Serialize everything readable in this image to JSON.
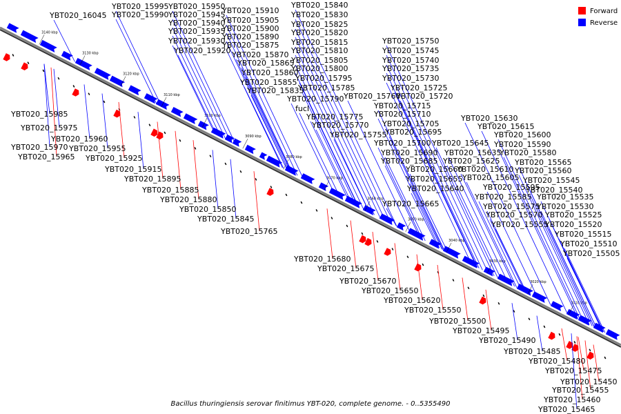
{
  "caption": "Bacillus thuringiensis serovar finitimus YBT-020, complete genome. - 0..5355490",
  "legend": [
    {
      "label": "Forward",
      "color": "#ff0000"
    },
    {
      "label": "Reverse",
      "color": "#0000ff"
    }
  ],
  "colors": {
    "forward": "#ff0000",
    "reverse": "#0000ff",
    "axis": "#808080"
  },
  "ticks": [
    "3140 kbp",
    "3130 kbp",
    "3120 kbp",
    "3110 kbp",
    "3100 kbp",
    "3090 kbp",
    "3080 kbp",
    "3070 kbp",
    "3060 kbp",
    "3050 kbp",
    "3040 kbp",
    "3030 kbp",
    "3020 kbp",
    "3010 kbp"
  ],
  "labels": [
    {
      "text": "YBT020_16045",
      "s": "r"
    },
    {
      "text": "YBT020_15995",
      "s": "r"
    },
    {
      "text": "YBT020_15990",
      "s": "r"
    },
    {
      "text": "YBT020_15950",
      "s": "r"
    },
    {
      "text": "YBT020_15945",
      "s": "r"
    },
    {
      "text": "YBT020_15940",
      "s": "r"
    },
    {
      "text": "YBT020_15935",
      "s": "r"
    },
    {
      "text": "YBT020_15930",
      "s": "r"
    },
    {
      "text": "YBT020_15920",
      "s": "r"
    },
    {
      "text": "YBT020_15910",
      "s": "r"
    },
    {
      "text": "YBT020_15905",
      "s": "r"
    },
    {
      "text": "YBT020_15900",
      "s": "r"
    },
    {
      "text": "YBT020_15890",
      "s": "r"
    },
    {
      "text": "YBT020_15875",
      "s": "r"
    },
    {
      "text": "YBT020_15870",
      "s": "r"
    },
    {
      "text": "YBT020_15865",
      "s": "r"
    },
    {
      "text": "YBT020_15860",
      "s": "r"
    },
    {
      "text": "YBT020_15855",
      "s": "r"
    },
    {
      "text": "YBT020_15835",
      "s": "r"
    },
    {
      "text": "YBT020_15840",
      "s": "r"
    },
    {
      "text": "YBT020_15830",
      "s": "r"
    },
    {
      "text": "YBT020_15825",
      "s": "r"
    },
    {
      "text": "YBT020_15820",
      "s": "r"
    },
    {
      "text": "YBT020_15815",
      "s": "r"
    },
    {
      "text": "YBT020_15810",
      "s": "r"
    },
    {
      "text": "YBT020_15805",
      "s": "r"
    },
    {
      "text": "YBT020_15800",
      "s": "r"
    },
    {
      "text": "YBT020_15795",
      "s": "r"
    },
    {
      "text": "YBT020_15785",
      "s": "r"
    },
    {
      "text": "YBT020_15790",
      "s": "r"
    },
    {
      "text": "fucI",
      "s": "r"
    },
    {
      "text": "YBT020_15775",
      "s": "r"
    },
    {
      "text": "YBT020_15770",
      "s": "r"
    },
    {
      "text": "YBT020_15760",
      "s": "r"
    },
    {
      "text": "YBT020_15755",
      "s": "r"
    },
    {
      "text": "YBT020_15750",
      "s": "r"
    },
    {
      "text": "YBT020_15745",
      "s": "r"
    },
    {
      "text": "YBT020_15740",
      "s": "r"
    },
    {
      "text": "YBT020_15735",
      "s": "r"
    },
    {
      "text": "YBT020_15730",
      "s": "r"
    },
    {
      "text": "YBT020_15725",
      "s": "r"
    },
    {
      "text": "YBT020_15720",
      "s": "r"
    },
    {
      "text": "YBT020_15715",
      "s": "r"
    },
    {
      "text": "YBT020_15710",
      "s": "r"
    },
    {
      "text": "YBT020_15705",
      "s": "r"
    },
    {
      "text": "YBT020_15695",
      "s": "r"
    },
    {
      "text": "YBT020_15700",
      "s": "r"
    },
    {
      "text": "YBT020_15690",
      "s": "r"
    },
    {
      "text": "YBT020_15685",
      "s": "r"
    },
    {
      "text": "YBT020_15660",
      "s": "r"
    },
    {
      "text": "YBT020_15655",
      "s": "r"
    },
    {
      "text": "YBT020_15640",
      "s": "r"
    },
    {
      "text": "YBT020_15665",
      "s": "r"
    },
    {
      "text": "YBT020_15645",
      "s": "r"
    },
    {
      "text": "YBT020_15635",
      "s": "r"
    },
    {
      "text": "YBT020_15625",
      "s": "r"
    },
    {
      "text": "YBT020_15610",
      "s": "r"
    },
    {
      "text": "YBT020_15605",
      "s": "r"
    },
    {
      "text": "YBT020_15595",
      "s": "r"
    },
    {
      "text": "YBT020_15585",
      "s": "r"
    },
    {
      "text": "YBT020_15575",
      "s": "r"
    },
    {
      "text": "YBT020_15570",
      "s": "r"
    },
    {
      "text": "YBT020_15555",
      "s": "r"
    },
    {
      "text": "YBT020_15630",
      "s": "r"
    },
    {
      "text": "YBT020_15615",
      "s": "r"
    },
    {
      "text": "YBT020_15600",
      "s": "r"
    },
    {
      "text": "YBT020_15590",
      "s": "r"
    },
    {
      "text": "YBT020_15580",
      "s": "r"
    },
    {
      "text": "YBT020_15565",
      "s": "r"
    },
    {
      "text": "YBT020_15560",
      "s": "r"
    },
    {
      "text": "YBT020_15545",
      "s": "r"
    },
    {
      "text": "YBT020_15540",
      "s": "r"
    },
    {
      "text": "YBT020_15535",
      "s": "r"
    },
    {
      "text": "YBT020_15530",
      "s": "r"
    },
    {
      "text": "YBT020_15525",
      "s": "r"
    },
    {
      "text": "YBT020_15520",
      "s": "r"
    },
    {
      "text": "YBT020_15515",
      "s": "r"
    },
    {
      "text": "YBT020_15510",
      "s": "r"
    },
    {
      "text": "YBT020_15505",
      "s": "r"
    },
    {
      "text": "YBT020_15985",
      "s": "r"
    },
    {
      "text": "YBT020_15975",
      "s": "r"
    },
    {
      "text": "YBT020_15960",
      "s": "r"
    },
    {
      "text": "YBT020_15970",
      "s": "r"
    },
    {
      "text": "YBT020_15955",
      "s": "r"
    },
    {
      "text": "YBT020_15965",
      "s": "f"
    },
    {
      "text": "YBT020_15925",
      "s": "f"
    },
    {
      "text": "YBT020_15915",
      "s": "r"
    },
    {
      "text": "YBT020_15895",
      "s": "f"
    },
    {
      "text": "YBT020_15885",
      "s": "f"
    },
    {
      "text": "YBT020_15880",
      "s": "f"
    },
    {
      "text": "YBT020_15850",
      "s": "r"
    },
    {
      "text": "YBT020_15845",
      "s": "r"
    },
    {
      "text": "YBT020_15765",
      "s": "f"
    },
    {
      "text": "YBT020_15680",
      "s": "f"
    },
    {
      "text": "YBT020_15675",
      "s": "f"
    },
    {
      "text": "YBT020_15670",
      "s": "f"
    },
    {
      "text": "YBT020_15650",
      "s": "f"
    },
    {
      "text": "YBT020_15620",
      "s": "f"
    },
    {
      "text": "YBT020_15550",
      "s": "f"
    },
    {
      "text": "YBT020_15500",
      "s": "f"
    },
    {
      "text": "YBT020_15495",
      "s": "f"
    },
    {
      "text": "YBT020_15490",
      "s": "r"
    },
    {
      "text": "YBT020_15485",
      "s": "r"
    },
    {
      "text": "YBT020_15480",
      "s": "f"
    },
    {
      "text": "YBT020_15475",
      "s": "f"
    },
    {
      "text": "YBT020_15450",
      "s": "f"
    },
    {
      "text": "YBT020_15455",
      "s": "f"
    },
    {
      "text": "YBT020_15460",
      "s": "f"
    },
    {
      "text": "YBT020_15465",
      "s": "r"
    }
  ]
}
